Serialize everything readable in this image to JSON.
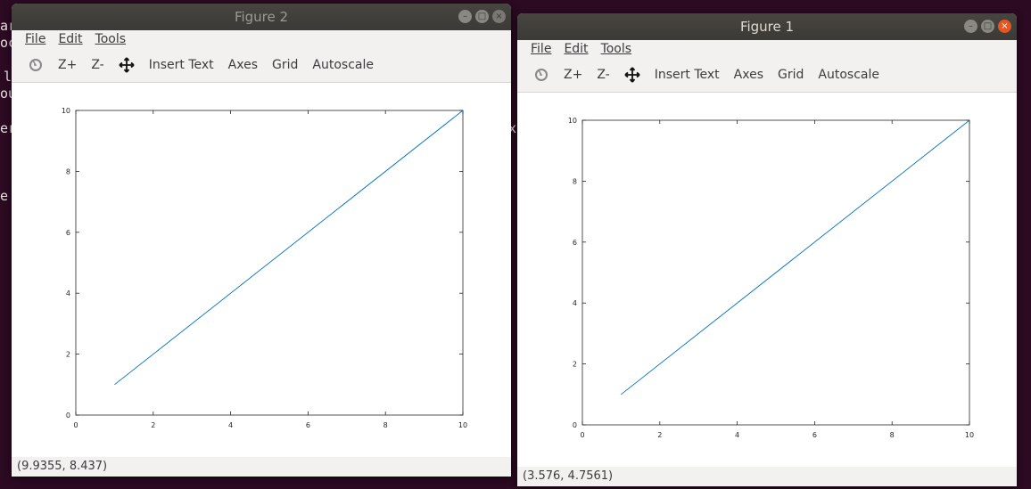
{
  "windows": [
    {
      "title": "Figure 2",
      "menus": [
        "File",
        "Edit",
        "Tools"
      ],
      "toolbar": {
        "zoom_in": "Z+",
        "zoom_out": "Z-",
        "insert_text": "Insert Text",
        "axes": "Axes",
        "grid": "Grid",
        "autoscale": "Autoscale"
      },
      "status": "(9.9355, 8.437)"
    },
    {
      "title": "Figure 1",
      "menus": [
        "File",
        "Edit",
        "Tools"
      ],
      "toolbar": {
        "zoom_in": "Z+",
        "zoom_out": "Z-",
        "insert_text": "Insert Text",
        "axes": "Axes",
        "grid": "Grid",
        "autoscale": "Autoscale"
      },
      "status": "(3.576, 4.7561)"
    }
  ],
  "background_text": [
    "ar",
    "oc",
    "l",
    "ou",
    "er",
    "e",
    "x"
  ],
  "chart_data": [
    {
      "type": "line",
      "series": [
        {
          "x": [
            1,
            10
          ],
          "y": [
            1,
            10
          ],
          "color": "#0072bd"
        }
      ],
      "xlim": [
        0,
        10
      ],
      "ylim": [
        0,
        10
      ],
      "xticks": [
        "0",
        "2",
        "4",
        "6",
        "8",
        "10"
      ],
      "yticks": [
        "0",
        "2",
        "4",
        "6",
        "8",
        "10"
      ],
      "grid": false
    },
    {
      "type": "line",
      "series": [
        {
          "x": [
            1,
            10
          ],
          "y": [
            1,
            10
          ],
          "color": "#0072bd"
        }
      ],
      "xlim": [
        0,
        10
      ],
      "ylim": [
        0,
        10
      ],
      "xticks": [
        "0",
        "2",
        "4",
        "6",
        "8",
        "10"
      ],
      "yticks": [
        "0",
        "2",
        "4",
        "6",
        "8",
        "10"
      ],
      "grid": false
    }
  ]
}
